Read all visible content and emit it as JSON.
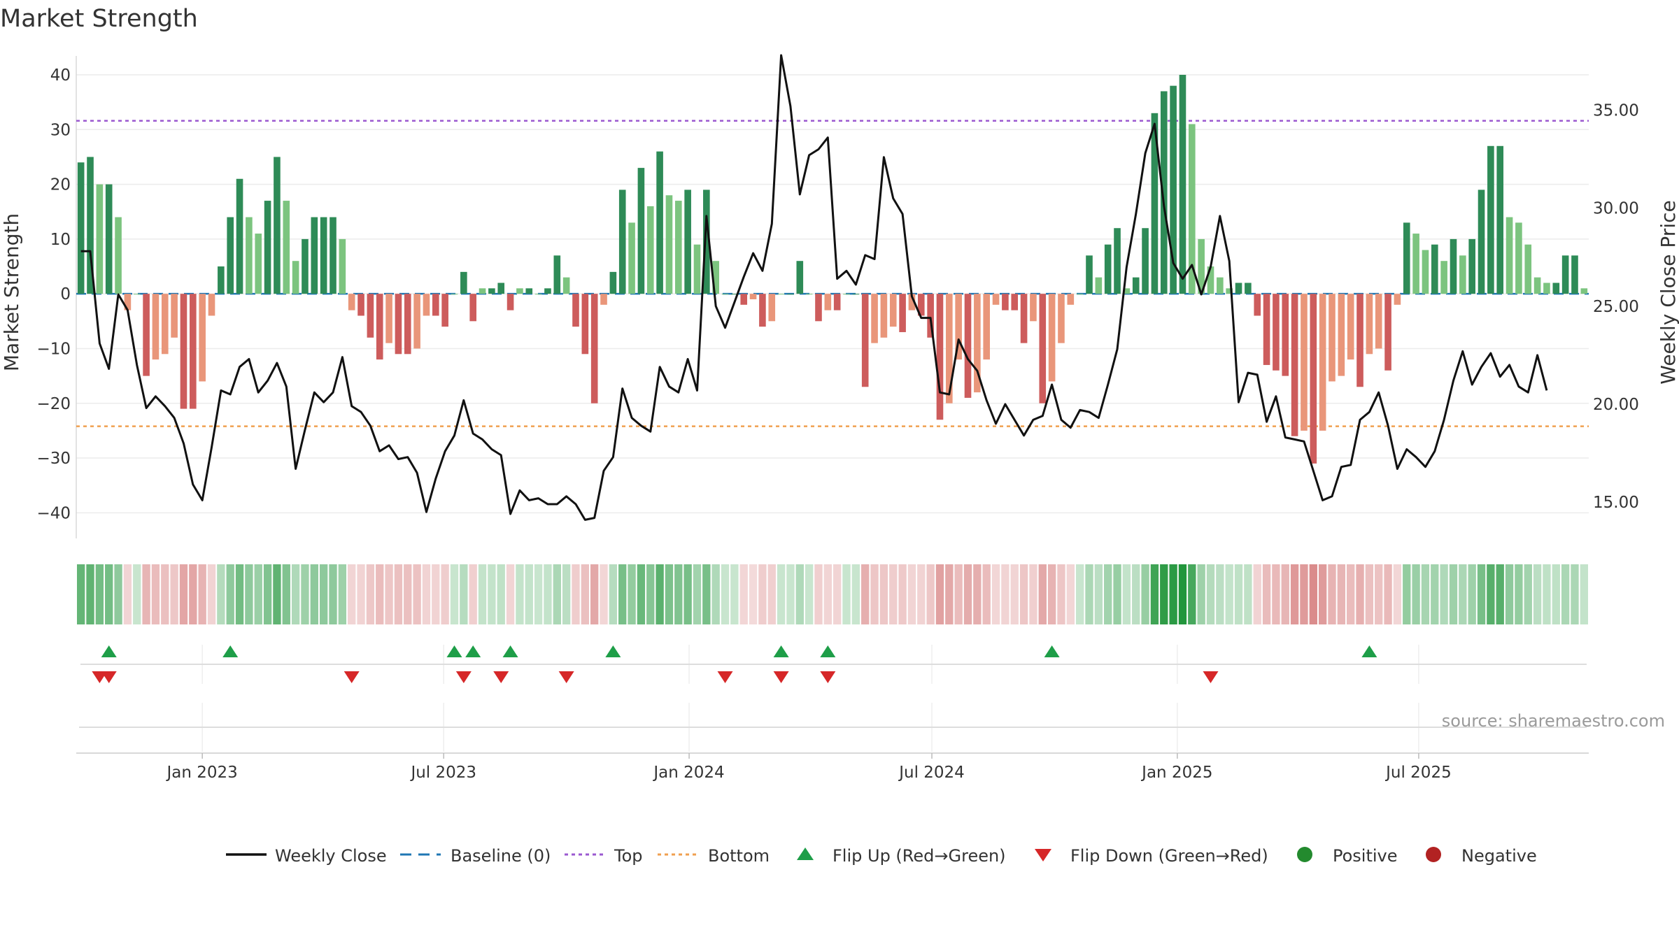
{
  "chart_data": {
    "type": "bar",
    "title": "Market Strength",
    "ylabel": "Market Strength",
    "y2label": "Weekly Close Price",
    "ylim": [
      -42,
      40
    ],
    "y2lim": [
      13.9,
      36.8
    ],
    "yticks": [
      "40",
      "30",
      "20",
      "10",
      "0",
      "−10",
      "−20",
      "−30",
      "−40"
    ],
    "y2ticks": [
      "35.00",
      "30.00",
      "25.00",
      "20.00",
      "15.00"
    ],
    "y2tick_values": [
      35,
      30,
      25,
      20,
      15
    ],
    "top_line": 31.6,
    "bottom_line": -24.2,
    "x_start": "2022-10-02",
    "week_days": 7,
    "xticks": [
      {
        "label": "Jan 2023",
        "date": "2023-01-01"
      },
      {
        "label": "Jul 2023",
        "date": "2023-07-01"
      },
      {
        "label": "Jan 2024",
        "date": "2024-01-01"
      },
      {
        "label": "Jul 2024",
        "date": "2024-07-01"
      },
      {
        "label": "Jan 2025",
        "date": "2025-01-01"
      },
      {
        "label": "Jul 2025",
        "date": "2025-07-01"
      }
    ],
    "strength": [
      24,
      25,
      20,
      20,
      14,
      -3,
      0,
      -15,
      -12,
      -11,
      -8,
      -21,
      -21,
      -16,
      -4,
      5,
      14,
      21,
      14,
      11,
      17,
      25,
      17,
      6,
      10,
      14,
      14,
      14,
      10,
      -3,
      -4,
      -8,
      -12,
      -9,
      -11,
      -11,
      -10,
      -4,
      -4,
      -6,
      0,
      4,
      -5,
      1,
      1,
      2,
      -3,
      1,
      1,
      0,
      1,
      7,
      3,
      -6,
      -11,
      -20,
      -2,
      4,
      19,
      13,
      23,
      16,
      26,
      18,
      17,
      19,
      9,
      19,
      6,
      0,
      0,
      -2,
      -1,
      -6,
      -5,
      0,
      0,
      6,
      0,
      -5,
      -3,
      -3,
      0,
      0,
      -17,
      -9,
      -8,
      -6,
      -7,
      -3,
      -4,
      -8,
      -23,
      -20,
      -12,
      -19,
      -18,
      -12,
      -2,
      -3,
      -3,
      -9,
      -5,
      -20,
      -16,
      -9,
      -2,
      0,
      7,
      3,
      9,
      12,
      1,
      3,
      12,
      33,
      37,
      38,
      40,
      31,
      10,
      5,
      3,
      1,
      2,
      2,
      -4,
      -13,
      -14,
      -15,
      -26,
      -25,
      -31,
      -25,
      -16,
      -15,
      -12,
      -17,
      -11,
      -10,
      -14,
      -2,
      13,
      11,
      8,
      9,
      6,
      10,
      7,
      10,
      19,
      27,
      27,
      14,
      13,
      9,
      3,
      2,
      2,
      7,
      7,
      1
    ],
    "close": [
      27.8,
      27.8,
      23.1,
      21.8,
      25.6,
      24.8,
      22.0,
      19.8,
      20.4,
      19.9,
      19.3,
      18.0,
      15.9,
      15.1,
      17.8,
      20.7,
      20.5,
      21.9,
      22.3,
      20.6,
      21.2,
      22.1,
      20.9,
      16.7,
      18.7,
      20.6,
      20.1,
      20.6,
      22.4,
      19.9,
      19.6,
      18.9,
      17.6,
      17.9,
      17.2,
      17.3,
      16.5,
      14.5,
      16.2,
      17.6,
      18.4,
      20.2,
      18.5,
      18.2,
      17.7,
      17.4,
      14.4,
      15.6,
      15.1,
      15.2,
      14.9,
      14.9,
      15.3,
      14.9,
      14.1,
      14.2,
      16.6,
      17.3,
      20.8,
      19.3,
      18.9,
      18.6,
      21.9,
      20.9,
      20.6,
      22.3,
      20.7,
      29.6,
      25.0,
      23.9,
      25.2,
      26.5,
      27.7,
      26.8,
      29.2,
      37.8,
      35.2,
      30.7,
      32.7,
      33.0,
      33.6,
      26.4,
      26.8,
      26.1,
      27.6,
      27.4,
      32.6,
      30.5,
      29.7,
      25.5,
      24.4,
      24.4,
      20.6,
      20.5,
      23.3,
      22.3,
      21.7,
      20.2,
      19.0,
      20.0,
      19.2,
      18.4,
      19.2,
      19.4,
      21.0,
      19.2,
      18.8,
      19.7,
      19.6,
      19.3,
      21.0,
      22.8,
      27.0,
      29.7,
      32.8,
      34.3,
      30.1,
      27.2,
      26.4,
      27.1,
      25.6,
      27.0,
      29.6,
      27.3,
      20.1,
      21.6,
      21.5,
      19.1,
      20.4,
      18.3,
      18.2,
      18.1,
      16.6,
      15.1,
      15.3,
      16.8,
      16.9,
      19.2,
      19.6,
      20.6,
      18.9,
      16.7,
      17.7,
      17.3,
      16.8,
      17.6,
      19.2,
      21.2,
      22.7,
      21.0,
      21.9,
      22.6,
      21.4,
      22.0,
      20.9,
      20.6,
      22.5,
      20.7
    ],
    "flip_up_weeks": [
      3,
      16,
      40,
      42,
      46,
      57,
      75,
      80,
      104,
      138
    ],
    "flip_down_weeks": [
      2,
      3,
      29,
      41,
      45,
      52,
      69,
      75,
      80,
      121
    ],
    "legend": [
      {
        "label": "Weekly Close",
        "kind": "line",
        "color": "#111111"
      },
      {
        "label": "Baseline (0)",
        "kind": "dash",
        "color": "#1f77b4"
      },
      {
        "label": "Top",
        "kind": "dot",
        "color": "#9b59d0"
      },
      {
        "label": "Bottom",
        "kind": "dot",
        "color": "#f0a050"
      },
      {
        "label": "Flip Up (Red→Green)",
        "kind": "tri-up",
        "color": "#1e9e48"
      },
      {
        "label": "Flip Down (Green→Red)",
        "kind": "tri-down",
        "color": "#d62728"
      },
      {
        "label": "Positive",
        "kind": "circle",
        "color": "#238a2e"
      },
      {
        "label": "Negative",
        "kind": "circle",
        "color": "#b22222"
      }
    ],
    "source": "source: sharemaestro.com"
  },
  "colors": {
    "pos_strong": "#2e8b57",
    "pos_weak": "#7cc47f",
    "neg_strong": "#cd5c5c",
    "neg_weak": "#e9967a",
    "baseline": "#1f77b4",
    "top": "#9b59d0",
    "bottom": "#f0a050",
    "close": "#111111",
    "flip_up": "#1e9e48",
    "flip_down": "#d62728"
  }
}
